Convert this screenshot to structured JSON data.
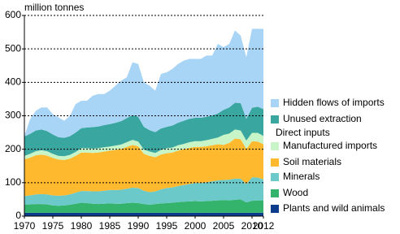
{
  "chart_data": {
    "type": "stacked_area",
    "y_axis_label": "million tonnes",
    "legend_heading": "Direct inputs",
    "x": [
      1970,
      1971,
      1972,
      1973,
      1974,
      1975,
      1976,
      1977,
      1978,
      1979,
      1980,
      1981,
      1982,
      1983,
      1984,
      1985,
      1986,
      1987,
      1988,
      1989,
      1990,
      1991,
      1992,
      1993,
      1994,
      1995,
      1996,
      1997,
      1998,
      1999,
      2000,
      2001,
      2002,
      2003,
      2004,
      2005,
      2006,
      2007,
      2008,
      2009,
      2010,
      2011,
      2012
    ],
    "xlim": [
      1970,
      2012
    ],
    "xticks": [
      1970,
      1975,
      1980,
      1985,
      1990,
      1995,
      2000,
      2005,
      2010,
      2012
    ],
    "ylim": [
      0,
      600
    ],
    "yticks": [
      0,
      100,
      200,
      300,
      400,
      500,
      600
    ],
    "grid": true,
    "series": [
      {
        "name": "Plants and wild animals",
        "color": "#0b3d8c",
        "values": [
          10,
          10,
          10,
          10,
          10,
          10,
          10,
          10,
          10,
          10,
          10,
          10,
          10,
          10,
          10,
          10,
          10,
          10,
          10,
          10,
          10,
          10,
          10,
          10,
          10,
          10,
          10,
          10,
          10,
          10,
          10,
          10,
          10,
          10,
          10,
          10,
          10,
          10,
          10,
          10,
          10,
          10,
          10
        ]
      },
      {
        "name": "Wood",
        "color": "#33b36b",
        "values": [
          25,
          25,
          26,
          26,
          25,
          22,
          21,
          22,
          24,
          27,
          30,
          29,
          27,
          26,
          27,
          28,
          27,
          27,
          29,
          30,
          29,
          26,
          24,
          26,
          28,
          29,
          30,
          32,
          33,
          34,
          35,
          34,
          35,
          36,
          37,
          38,
          37,
          39,
          40,
          31,
          36,
          37,
          37
        ]
      },
      {
        "name": "Minerals",
        "color": "#6cc9c9",
        "values": [
          25,
          27,
          29,
          30,
          30,
          30,
          30,
          30,
          31,
          33,
          35,
          36,
          37,
          38,
          39,
          40,
          41,
          42,
          43,
          45,
          45,
          40,
          38,
          38,
          42,
          45,
          46,
          48,
          50,
          52,
          54,
          55,
          56,
          58,
          60,
          60,
          62,
          63,
          62,
          55,
          70,
          68,
          63
        ]
      },
      {
        "name": "Soil materials",
        "color": "#ffb92e",
        "values": [
          110,
          113,
          117,
          118,
          116,
          112,
          108,
          106,
          107,
          110,
          115,
          115,
          115,
          116,
          117,
          118,
          120,
          122,
          125,
          128,
          125,
          110,
          108,
          102,
          104,
          104,
          104,
          106,
          107,
          108,
          108,
          108,
          108,
          108,
          108,
          105,
          110,
          120,
          118,
          105,
          108,
          108,
          105
        ]
      },
      {
        "name": "Manufactured imports",
        "color": "#c8f5c8",
        "values": [
          10,
          11,
          12,
          13,
          13,
          12,
          11,
          11,
          11,
          12,
          13,
          13,
          13,
          13,
          13,
          12,
          13,
          13,
          14,
          15,
          14,
          13,
          13,
          13,
          14,
          15,
          15,
          16,
          16,
          17,
          17,
          17,
          18,
          19,
          20,
          30,
          28,
          27,
          26,
          25,
          25,
          26,
          25
        ]
      },
      {
        "name": "Unused extraction",
        "color": "#3aa6a0",
        "values": [
          58,
          60,
          62,
          62,
          60,
          58,
          56,
          55,
          56,
          58,
          60,
          62,
          64,
          65,
          66,
          67,
          68,
          70,
          72,
          74,
          74,
          68,
          64,
          62,
          64,
          64,
          66,
          67,
          69,
          70,
          70,
          70,
          70,
          70,
          72,
          75,
          78,
          80,
          82,
          65,
          75,
          78,
          80
        ]
      },
      {
        "name": "Hidden flows of imports",
        "color": "#a8d4f5",
        "values": [
          2,
          44,
          59,
          66,
          71,
          61,
          59,
          51,
          61,
          85,
          82,
          80,
          94,
          97,
          93,
          100,
          111,
          121,
          122,
          158,
          158,
          133,
          133,
          124,
          163,
          163,
          169,
          176,
          180,
          179,
          176,
          176,
          183,
          179,
          208,
          187,
          190,
          216,
          202,
          184,
          236,
          233,
          240
        ]
      }
    ]
  }
}
